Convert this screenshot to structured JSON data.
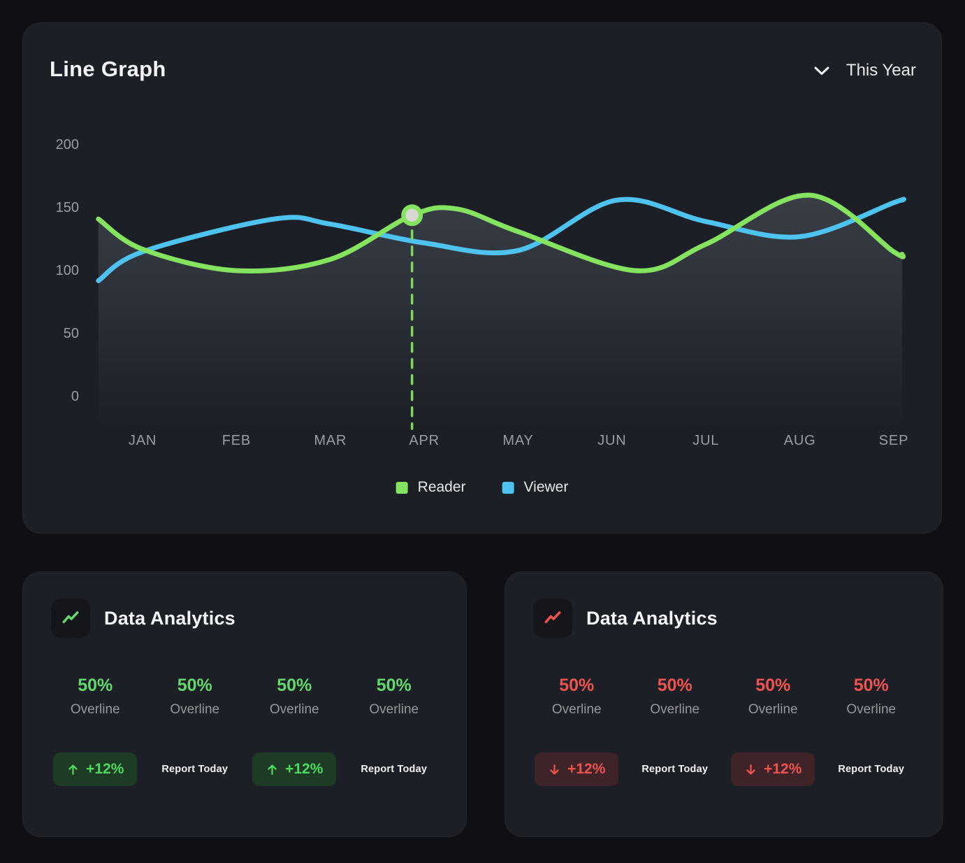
{
  "line_graph_card": {
    "title": "Line Graph",
    "period_selector": {
      "label": "This Year",
      "icon": "chevron-down"
    },
    "legend": [
      {
        "name": "Reader",
        "color": "#84e35f"
      },
      {
        "name": "Viewer",
        "color": "#4ec3f0"
      }
    ]
  },
  "chart_data": {
    "type": "line",
    "title": "Line Graph",
    "categories": [
      "JAN",
      "FEB",
      "MAR",
      "APR",
      "MAY",
      "JUN",
      "JUL",
      "AUG",
      "SEP"
    ],
    "y_ticks": [
      200,
      150,
      100,
      50,
      0
    ],
    "ylim": [
      0,
      200
    ],
    "grid": false,
    "legend_position": "bottom",
    "series": [
      {
        "name": "Reader",
        "color": "#84e35f",
        "values": [
          117,
          100,
          109,
          144,
          131,
          103,
          121,
          159,
          114
        ]
      },
      {
        "name": "Viewer",
        "color": "#4ec3f0",
        "values": [
          115,
          138,
          137,
          122,
          117,
          155,
          139,
          127,
          154
        ]
      }
    ],
    "highlight": {
      "series": "Reader",
      "month": "APR",
      "value": 144,
      "marker_fill": "#d9d9d3",
      "dashed_line_color": "#7cd95b"
    },
    "area_fill_series": "Reader",
    "area_fill_color": "#aeb9cd",
    "render": {
      "reader_points": [
        [
          -0.47,
          141
        ],
        [
          0,
          117
        ],
        [
          1,
          100
        ],
        [
          2,
          109
        ],
        [
          2.87,
          144
        ],
        [
          3.35,
          149
        ],
        [
          4,
          131
        ],
        [
          5.25,
          100
        ],
        [
          6,
          121
        ],
        [
          7.1,
          160
        ],
        [
          8,
          115
        ],
        [
          8.09,
          113
        ]
      ],
      "viewer_points": [
        [
          -0.47,
          92
        ],
        [
          0,
          115
        ],
        [
          1.4,
          141
        ],
        [
          2,
          137
        ],
        [
          3,
          122
        ],
        [
          4,
          116
        ],
        [
          5.05,
          156
        ],
        [
          6,
          139
        ],
        [
          7,
          127
        ],
        [
          8,
          154
        ],
        [
          8.09,
          156
        ]
      ],
      "highlight_point": [
        2.87,
        144
      ]
    }
  },
  "analytics_cards": [
    {
      "title": "Data Analytics",
      "icon": "trending-up-icon",
      "accent_color": "#63d86d",
      "badge_bg": "#1e3b26",
      "badge_fg": "#4cdb5e",
      "direction": "up",
      "stats": [
        {
          "value": "50%",
          "label": "Overline"
        },
        {
          "value": "50%",
          "label": "Overline"
        },
        {
          "value": "50%",
          "label": "Overline"
        },
        {
          "value": "50%",
          "label": "Overline"
        }
      ],
      "badges": [
        {
          "type": "badge",
          "direction": "up",
          "value": "+12%"
        },
        {
          "type": "label",
          "text": "Report Today"
        },
        {
          "type": "badge",
          "direction": "up",
          "value": "+12%"
        },
        {
          "type": "label",
          "text": "Report Today"
        }
      ]
    },
    {
      "title": "Data Analytics",
      "icon": "trending-up-icon",
      "accent_color": "#ef5350",
      "badge_bg": "#3e2428",
      "badge_fg": "#ef5350",
      "direction": "down",
      "stats": [
        {
          "value": "50%",
          "label": "Overline"
        },
        {
          "value": "50%",
          "label": "Overline"
        },
        {
          "value": "50%",
          "label": "Overline"
        },
        {
          "value": "50%",
          "label": "Overline"
        }
      ],
      "badges": [
        {
          "type": "badge",
          "direction": "down",
          "value": "+12%"
        },
        {
          "type": "label",
          "text": "Report Today"
        },
        {
          "type": "badge",
          "direction": "down",
          "value": "+12%"
        },
        {
          "type": "label",
          "text": "Report Today"
        }
      ]
    }
  ]
}
